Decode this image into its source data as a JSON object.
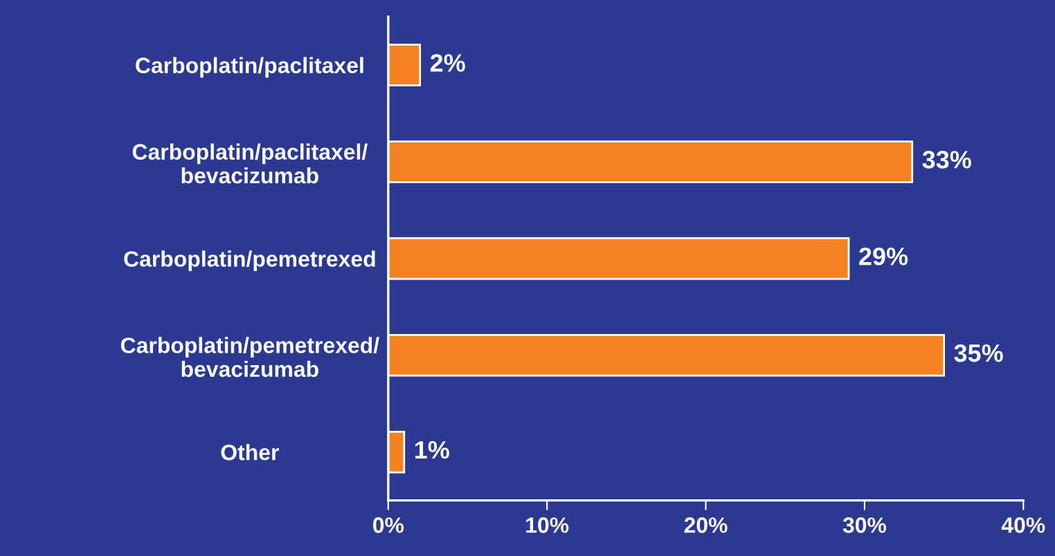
{
  "chart_data": {
    "type": "bar",
    "orientation": "horizontal",
    "categories": [
      "Carboplatin/paclitaxel",
      "Carboplatin/paclitaxel/\nbevacizumab",
      "Carboplatin/pemetrexed",
      "Carboplatin/pemetrexed/\nbevacizumab",
      "Other"
    ],
    "values": [
      2,
      33,
      29,
      35,
      1
    ],
    "value_labels": [
      "2%",
      "33%",
      "29%",
      "35%",
      "1%"
    ],
    "color": "#f58220",
    "xlim": [
      0,
      40
    ],
    "xticks": [
      {
        "value": 0,
        "label": "0%"
      },
      {
        "value": 10,
        "label": "10%"
      },
      {
        "value": 20,
        "label": "20%"
      },
      {
        "value": 30,
        "label": "30%"
      },
      {
        "value": 40,
        "label": "40%"
      }
    ],
    "grid": false,
    "legend": false
  }
}
